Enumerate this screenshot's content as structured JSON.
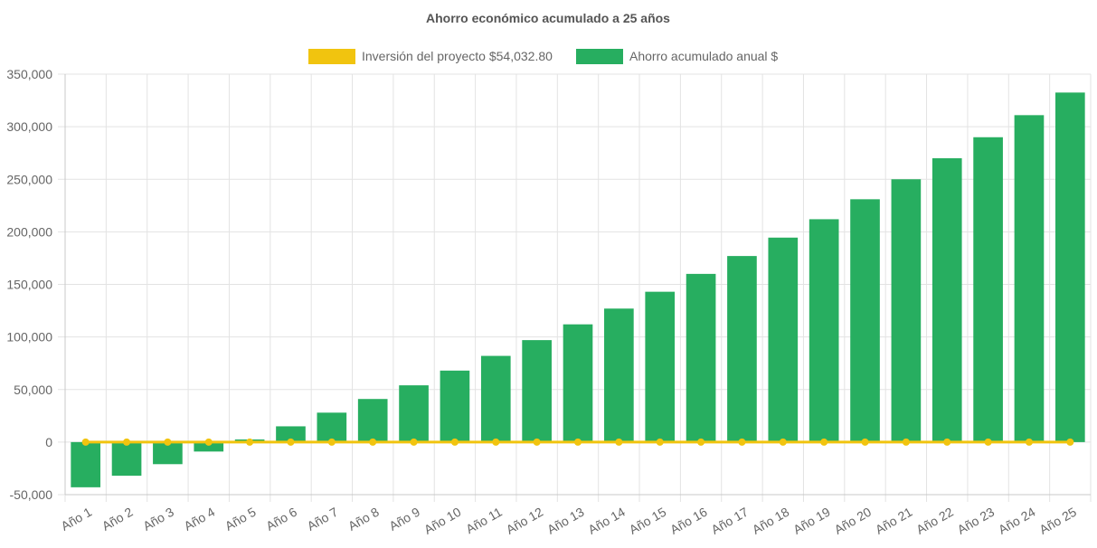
{
  "colors": {
    "investment": "#F1C40F",
    "savings": "#27AE60",
    "grid": "#e3e3e3",
    "text": "#666666",
    "title": "#555555"
  },
  "chart_data": {
    "type": "bar",
    "title": "Ahorro económico acumulado a 25 años",
    "xlabel": "",
    "ylabel": "",
    "ylim": [
      -50000,
      350000
    ],
    "yticks": [
      350000,
      300000,
      250000,
      200000,
      150000,
      100000,
      50000,
      0,
      -50000
    ],
    "ytick_labels": [
      "350,000",
      "300,000",
      "250,000",
      "200,000",
      "150,000",
      "100,000",
      "50,000",
      "0",
      "-50,000"
    ],
    "grid": true,
    "legend_position": "top",
    "categories": [
      "Año 1",
      "Año 2",
      "Año 3",
      "Año 4",
      "Año 5",
      "Año 6",
      "Año 7",
      "Año 8",
      "Año 9",
      "Año 10",
      "Año 11",
      "Año 12",
      "Año 13",
      "Año 14",
      "Año 15",
      "Año 16",
      "Año 17",
      "Año 18",
      "Año 19",
      "Año 20",
      "Año 21",
      "Año 22",
      "Año 23",
      "Año 24",
      "Año 25"
    ],
    "series": [
      {
        "name": "Inversión del proyecto $54,032.80",
        "type": "line",
        "color": "#F1C40F",
        "values": [
          0,
          0,
          0,
          0,
          0,
          0,
          0,
          0,
          0,
          0,
          0,
          0,
          0,
          0,
          0,
          0,
          0,
          0,
          0,
          0,
          0,
          0,
          0,
          0,
          0
        ]
      },
      {
        "name": "Ahorro acumulado anual $",
        "type": "bar",
        "color": "#27AE60",
        "values": [
          -43000,
          -32000,
          -21000,
          -9000,
          2500,
          15000,
          28000,
          41000,
          54000,
          68000,
          82000,
          97000,
          112000,
          127000,
          143000,
          160000,
          177000,
          194500,
          212000,
          231000,
          250000,
          270000,
          290000,
          311000,
          332500
        ]
      }
    ]
  }
}
